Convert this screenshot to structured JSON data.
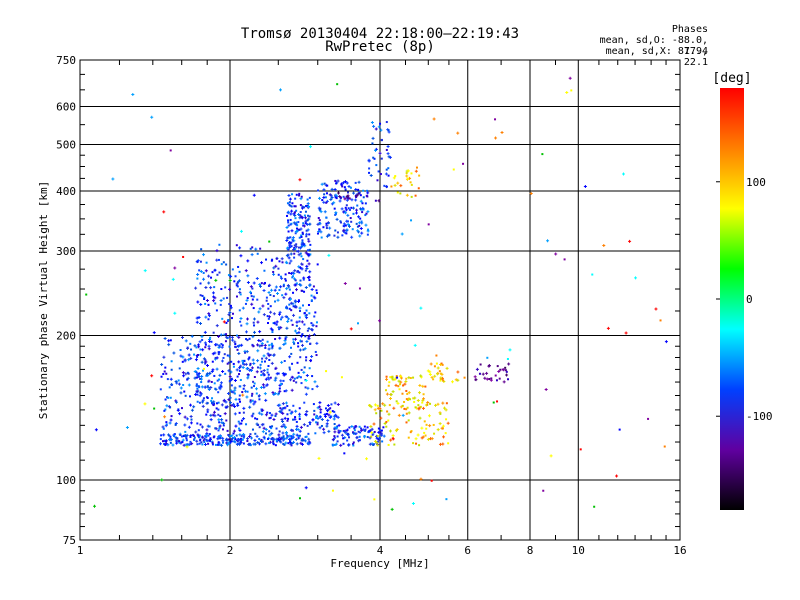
{
  "chart_data": {
    "type": "scatter",
    "title": "Tromsø 20130404 22:18:00–22:19:43",
    "subtitle": "RwPretec (8p)",
    "xlabel": "Frequency [MHz]",
    "ylabel": "Stationary phase Virtual Height [km]",
    "x_scale": "log",
    "y_scale": "log",
    "xlim": [
      1,
      16
    ],
    "ylim": [
      75,
      750
    ],
    "x_ticks": [
      1,
      2,
      4,
      6,
      8,
      10,
      16
    ],
    "y_ticks": [
      75,
      100,
      200,
      300,
      400,
      500,
      600,
      750
    ],
    "grid": true,
    "stats": {
      "header": "Phases",
      "line_o": "mean, sd,O: -88.0, 17.4",
      "line_x": "mean, sd,X:  87.9, 22.1"
    },
    "colorbar": {
      "label": "[deg]",
      "range": [
        -180,
        180
      ],
      "ticks": [
        100,
        0,
        -100
      ],
      "colors": [
        "#ff0000",
        "#ff8000",
        "#ffff00",
        "#00ff00",
        "#00ffff",
        "#0040ff",
        "#6000a0",
        "#000000"
      ]
    },
    "series": [
      {
        "color_class": "blue (O-mode, ~-90 deg)",
        "regions": [
          {
            "f": [
              1.45,
              2.9
            ],
            "h": [
              118,
              125
            ]
          },
          {
            "f": [
              1.45,
              2.4
            ],
            "h": [
              125,
              200
            ]
          },
          {
            "f": [
              1.7,
              2.3
            ],
            "h": [
              140,
              310
            ]
          },
          {
            "f": [
              2.3,
              3.0
            ],
            "h": [
              150,
              290
            ]
          },
          {
            "f": [
              2.6,
              2.9
            ],
            "h": [
              290,
              395
            ]
          },
          {
            "f": [
              2.4,
              3.3
            ],
            "h": [
              125,
              145
            ]
          },
          {
            "f": [
              3.2,
              4.1
            ],
            "h": [
              118,
              130
            ]
          },
          {
            "f": [
              3.0,
              3.8
            ],
            "h": [
              320,
              420
            ]
          },
          {
            "f": [
              3.8,
              4.2
            ],
            "h": [
              400,
              560
            ]
          }
        ]
      },
      {
        "color_class": "yellow/orange (X-mode, ~+90 deg)",
        "regions": [
          {
            "f": [
              3.8,
              5.5
            ],
            "h": [
              118,
              145
            ]
          },
          {
            "f": [
              4.1,
              5.0
            ],
            "h": [
              140,
              165
            ]
          },
          {
            "f": [
              4.2,
              4.8
            ],
            "h": [
              380,
              450
            ]
          },
          {
            "f": [
              5.0,
              6.0
            ],
            "h": [
              160,
              175
            ]
          }
        ]
      },
      {
        "color_class": "purple/dark",
        "regions": [
          {
            "f": [
              6.2,
              7.3
            ],
            "h": [
              160,
              175
            ]
          },
          {
            "f": [
              3.3,
              4.0
            ],
            "h": [
              380,
              400
            ]
          }
        ]
      }
    ]
  }
}
